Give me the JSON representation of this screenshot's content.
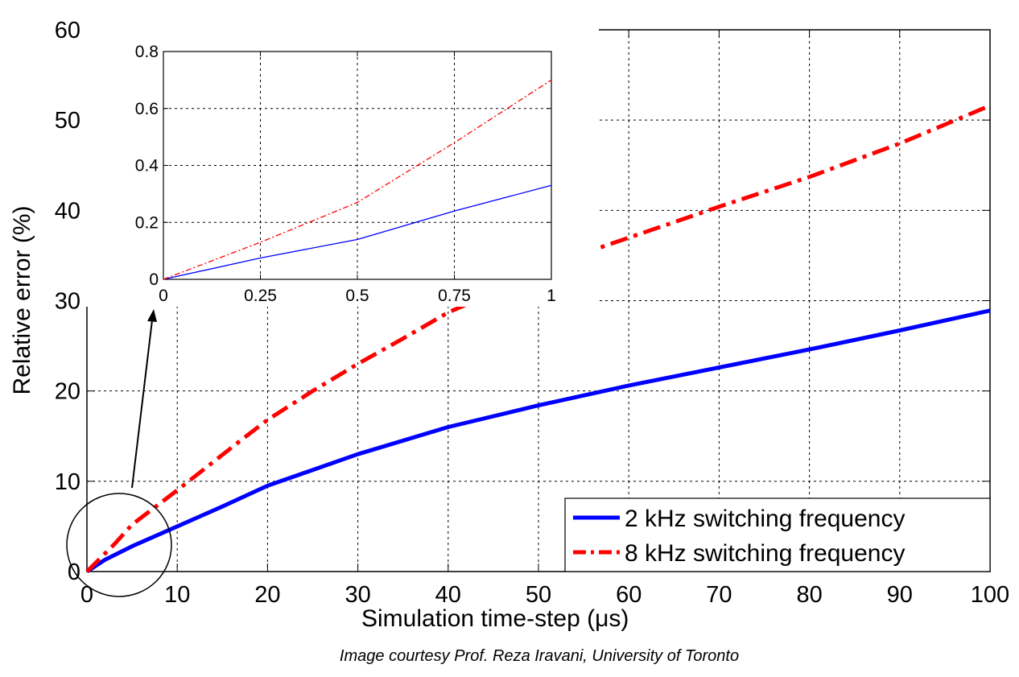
{
  "chart_data": [
    {
      "id": "main",
      "type": "line",
      "title": "",
      "xlabel": "Simulation time-step  (",
      "xlabel_unit": "μs)",
      "ylabel": "Relative error (%)",
      "xlim": [
        0,
        100
      ],
      "ylim": [
        0,
        60
      ],
      "xticks": [
        "0",
        "10",
        "20",
        "30",
        "40",
        "50",
        "60",
        "70",
        "80",
        "90",
        "100"
      ],
      "yticks": [
        "0",
        "10",
        "20",
        "30",
        "40",
        "50",
        "60"
      ],
      "grid": true,
      "legend_position": "bottom-right",
      "series": [
        {
          "name": "2 kHz switching frequency",
          "color": "#0000ff",
          "style": "solid",
          "x": [
            0,
            2,
            5,
            10,
            15,
            20,
            30,
            40,
            50,
            60,
            70,
            80,
            90,
            100
          ],
          "y": [
            0,
            1.3,
            2.8,
            5.0,
            7.2,
            9.5,
            13.0,
            16.0,
            18.4,
            20.6,
            22.6,
            24.6,
            26.7,
            28.9
          ]
        },
        {
          "name": "8 kHz switching frequency",
          "color": "#ff0000",
          "style": "dashdot",
          "x": [
            0,
            3,
            5,
            10,
            17,
            20,
            25,
            30,
            35,
            40,
            56,
            70,
            80,
            90,
            100
          ],
          "y": [
            0,
            3.0,
            5.2,
            9.0,
            14.5,
            16.8,
            20.0,
            23.0,
            25.8,
            28.7,
            35.6,
            40.4,
            43.7,
            47.4,
            51.6
          ]
        }
      ]
    },
    {
      "id": "inset",
      "type": "line",
      "title": "",
      "xlim": [
        0,
        1
      ],
      "ylim": [
        0,
        0.8
      ],
      "xticks": [
        "0",
        "0.25",
        "0.5",
        "0.75",
        "1"
      ],
      "yticks": [
        "0",
        "0.2",
        "0.4",
        "0.6",
        "0.8"
      ],
      "grid": true,
      "series": [
        {
          "name": "2 kHz switching frequency",
          "color": "#0000ff",
          "style": "solid",
          "x": [
            0,
            0.25,
            0.5,
            0.75,
            1
          ],
          "y": [
            0,
            0.075,
            0.14,
            0.24,
            0.33
          ]
        },
        {
          "name": "8 kHz switching frequency",
          "color": "#ff0000",
          "style": "dashdot",
          "x": [
            0,
            0.25,
            0.5,
            0.75,
            1
          ],
          "y": [
            0,
            0.13,
            0.27,
            0.48,
            0.7
          ]
        }
      ]
    }
  ],
  "caption": "Image courtesy Prof. Reza Iravani, University of Toronto"
}
